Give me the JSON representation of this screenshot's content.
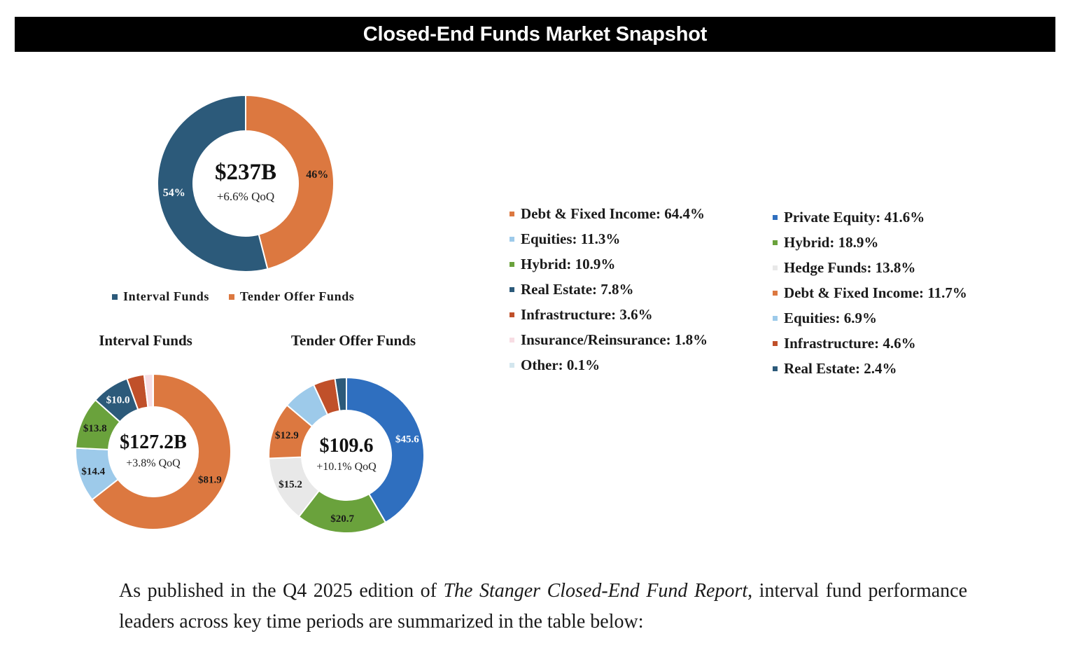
{
  "header": {
    "title": "Closed-End Funds Market Snapshot"
  },
  "colors": {
    "interval": "#2c5a7a",
    "tender_offer": "#dc7840",
    "debt": "#dc7840",
    "equities": "#9dcaea",
    "hybrid": "#6aa23c",
    "real_estate": "#2c5a7a",
    "infrastructure": "#c0502a",
    "insurance": "#f7dde3",
    "other": "#d3e6ee",
    "private_equity": "#2f6fbf",
    "hedge_funds": "#e8e8e8"
  },
  "legend_total": [
    {
      "label": "Interval Funds",
      "color": "#2c5a7a"
    },
    {
      "label": "Tender Offer Funds",
      "color": "#dc7840"
    }
  ],
  "legend_interval": [
    {
      "label": "Debt & Fixed Income: 64.4%",
      "color": "#dc7840"
    },
    {
      "label": "Equities: 11.3%",
      "color": "#9dcaea"
    },
    {
      "label": "Hybrid: 10.9%",
      "color": "#6aa23c"
    },
    {
      "label": "Real Estate: 7.8%",
      "color": "#2c5a7a"
    },
    {
      "label": "Infrastructure: 3.6%",
      "color": "#c0502a"
    },
    {
      "label": "Insurance/Reinsurance: 1.8%",
      "color": "#f7dde3"
    },
    {
      "label": "Other: 0.1%",
      "color": "#d3e6ee"
    }
  ],
  "legend_tender": [
    {
      "label": "Private Equity: 41.6%",
      "color": "#2f6fbf"
    },
    {
      "label": "Hybrid: 18.9%",
      "color": "#6aa23c"
    },
    {
      "label": "Hedge Funds: 13.8%",
      "color": "#e8e8e8"
    },
    {
      "label": "Debt & Fixed Income: 11.7%",
      "color": "#dc7840"
    },
    {
      "label": "Equities: 6.9%",
      "color": "#9dcaea"
    },
    {
      "label": "Infrastructure: 4.6%",
      "color": "#c0502a"
    },
    {
      "label": "Real Estate: 2.4%",
      "color": "#2c5a7a"
    }
  ],
  "chart_data": [
    {
      "type": "pie",
      "donut": true,
      "title": "",
      "center_value": "$237B",
      "center_sub": "+6.6% QoQ",
      "categories": [
        "Tender Offer Funds",
        "Interval Funds"
      ],
      "values": [
        46,
        54
      ],
      "data_labels": [
        "46%",
        "54%"
      ],
      "legend": "bottom"
    },
    {
      "type": "pie",
      "donut": true,
      "title": "Interval Funds",
      "center_value": "$127.2B",
      "center_sub": "+3.8% QoQ",
      "categories": [
        "Debt & Fixed Income",
        "Equities",
        "Hybrid",
        "Real Estate",
        "Infrastructure",
        "Insurance/Reinsurance",
        "Other"
      ],
      "values": [
        81.9,
        14.4,
        13.8,
        10.0,
        4.6,
        2.3,
        0.1
      ],
      "data_labels": [
        "$81.9",
        "$14.4",
        "$13.8",
        "$10.0",
        "",
        "",
        ""
      ]
    },
    {
      "type": "pie",
      "donut": true,
      "title": "Tender Offer Funds",
      "center_value": "$109.6",
      "center_sub": "+10.1% QoQ",
      "categories": [
        "Private Equity",
        "Hybrid",
        "Hedge Funds",
        "Debt & Fixed Income",
        "Equities",
        "Infrastructure",
        "Real Estate"
      ],
      "values": [
        45.6,
        20.7,
        15.2,
        12.9,
        7.6,
        5.0,
        2.6
      ],
      "data_labels": [
        "$45.6",
        "$20.7",
        "$15.2",
        "$12.9",
        "",
        "",
        ""
      ]
    }
  ],
  "paragraph": {
    "before": "As published in the Q4 2025 edition of ",
    "italic": "The Stanger Closed-End Fund Report",
    "after": ", interval fund performance leaders across key time periods are summarized in the table below:"
  }
}
